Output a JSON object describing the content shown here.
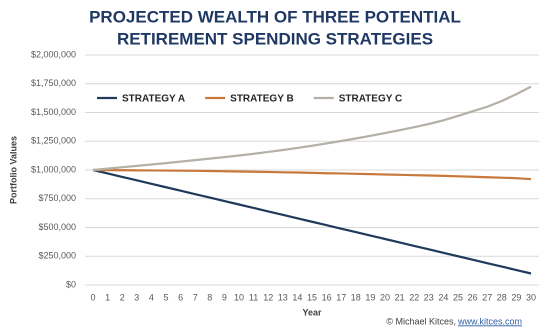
{
  "chart_data": {
    "type": "line",
    "title": [
      "PROJECTED WEALTH OF THREE POTENTIAL",
      "RETIREMENT SPENDING STRATEGIES"
    ],
    "xlabel": "Year",
    "ylabel": "Portfolio Values",
    "x": [
      0,
      1,
      2,
      3,
      4,
      5,
      6,
      7,
      8,
      9,
      10,
      11,
      12,
      13,
      14,
      15,
      16,
      17,
      18,
      19,
      20,
      21,
      22,
      23,
      24,
      25,
      26,
      27,
      28,
      29,
      30
    ],
    "xlim": [
      0,
      30
    ],
    "xticks": [
      0,
      1,
      2,
      3,
      4,
      5,
      6,
      7,
      8,
      9,
      10,
      11,
      12,
      13,
      14,
      15,
      16,
      17,
      18,
      19,
      20,
      21,
      22,
      23,
      24,
      25,
      26,
      27,
      28,
      29,
      30
    ],
    "ylim": [
      0,
      2000000
    ],
    "yticks": [
      {
        "value": 0,
        "label": "$0"
      },
      {
        "value": 250000,
        "label": "$250,000"
      },
      {
        "value": 500000,
        "label": "$500,000"
      },
      {
        "value": 750000,
        "label": "$750,000"
      },
      {
        "value": 1000000,
        "label": "$1,000,000"
      },
      {
        "value": 1250000,
        "label": "$1,250,000"
      },
      {
        "value": 1500000,
        "label": "$1,500,000"
      },
      {
        "value": 1750000,
        "label": "$1,750,000"
      },
      {
        "value": 2000000,
        "label": "$2,000,000"
      }
    ],
    "grid": true,
    "legend": "top-left",
    "series": [
      {
        "name": "STRATEGY A",
        "color": "#203a5c",
        "values": [
          1000000,
          970000,
          940000,
          910000,
          880000,
          850000,
          820000,
          790000,
          760000,
          730000,
          700000,
          670000,
          640000,
          610000,
          580000,
          550000,
          520000,
          490000,
          460000,
          430000,
          400000,
          370000,
          340000,
          310000,
          280000,
          250000,
          220000,
          190000,
          160000,
          130000,
          100000
        ]
      },
      {
        "name": "STRATEGY B",
        "color": "#c8783a",
        "values": [
          1000000,
          999000,
          998000,
          997000,
          996000,
          995000,
          994000,
          993000,
          991000,
          989000,
          987000,
          985000,
          983000,
          980000,
          978000,
          975000,
          972000,
          970000,
          967000,
          964000,
          961000,
          958000,
          955000,
          952000,
          949000,
          945000,
          941000,
          937000,
          933000,
          929000,
          920000
        ]
      },
      {
        "name": "STRATEGY C",
        "color": "#b5b0a6",
        "values": [
          1000000,
          1012000,
          1024000,
          1036000,
          1048000,
          1060000,
          1073000,
          1086000,
          1099000,
          1112000,
          1126000,
          1141000,
          1157000,
          1174000,
          1192000,
          1211000,
          1231000,
          1252000,
          1274000,
          1297000,
          1321000,
          1346000,
          1372000,
          1400000,
          1432000,
          1470000,
          1510000,
          1550000,
          1600000,
          1660000,
          1725000
        ]
      }
    ],
    "credit": "© Michael Kitces,",
    "credit_link": "www.kitces.com"
  }
}
